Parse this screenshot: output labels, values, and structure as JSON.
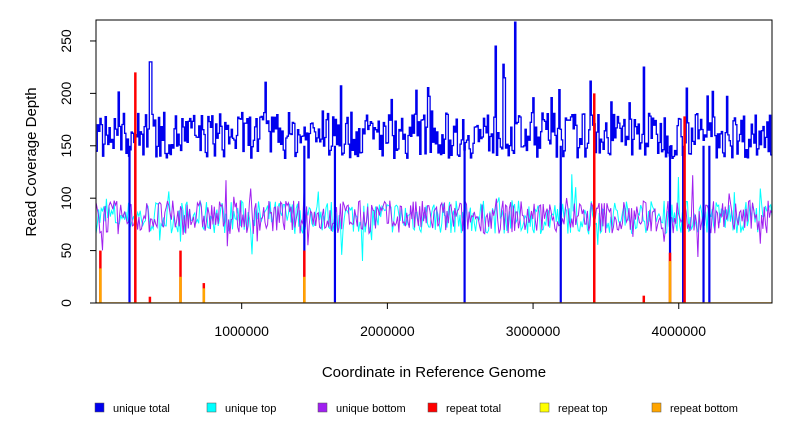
{
  "chart_data": {
    "type": "line",
    "title": "",
    "xlabel": "Coordinate in Reference Genome",
    "ylabel": "Read Coverage Depth",
    "xlim": [
      0,
      4640000
    ],
    "ylim": [
      0,
      270
    ],
    "x_ticks": [
      1000000,
      2000000,
      3000000,
      4000000
    ],
    "x_tick_labels": [
      "1000000",
      "2000000",
      "3000000",
      "4000000"
    ],
    "y_ticks": [
      0,
      50,
      100,
      150,
      200,
      250
    ],
    "y_tick_labels": [
      "0",
      "50",
      "100",
      "150",
      "200",
      "250"
    ],
    "grid": false,
    "legend_position": "bottom",
    "series": [
      {
        "name": "unique total",
        "color": "#0000ee",
        "baseline": 160,
        "noise": 22,
        "dips": [
          {
            "x": 230000,
            "y": 0
          },
          {
            "x": 270000,
            "y": 0
          },
          {
            "x": 1430000,
            "y": 0
          },
          {
            "x": 1640000,
            "y": 0
          },
          {
            "x": 2530000,
            "y": 0
          },
          {
            "x": 3190000,
            "y": 0
          },
          {
            "x": 3420000,
            "y": 0
          },
          {
            "x": 3940000,
            "y": 0
          },
          {
            "x": 4030000,
            "y": 0
          },
          {
            "x": 4170000,
            "y": 0
          },
          {
            "x": 4210000,
            "y": 0
          }
        ],
        "peaks": [
          {
            "x": 370000,
            "y": 230
          },
          {
            "x": 2740000,
            "y": 245
          },
          {
            "x": 2870000,
            "y": 268
          },
          {
            "x": 3760000,
            "y": 225
          },
          {
            "x": 4050000,
            "y": 205
          }
        ]
      },
      {
        "name": "unique top",
        "color": "#00ffff",
        "baseline": 82,
        "noise": 16
      },
      {
        "name": "unique bottom",
        "color": "#a020f0",
        "baseline": 82,
        "noise": 16
      },
      {
        "name": "repeat total",
        "color": "#ff0000",
        "baseline": 0,
        "spikes": [
          {
            "x": 30000,
            "y": 50
          },
          {
            "x": 270000,
            "y": 220
          },
          {
            "x": 370000,
            "y": 6
          },
          {
            "x": 580000,
            "y": 50
          },
          {
            "x": 740000,
            "y": 19
          },
          {
            "x": 1430000,
            "y": 50
          },
          {
            "x": 3420000,
            "y": 200
          },
          {
            "x": 3760000,
            "y": 7
          },
          {
            "x": 3940000,
            "y": 48
          },
          {
            "x": 4040000,
            "y": 178
          }
        ]
      },
      {
        "name": "repeat top",
        "color": "#ffff00",
        "baseline": 0
      },
      {
        "name": "repeat bottom",
        "color": "#ffa500",
        "baseline": 0,
        "spikes": [
          {
            "x": 30000,
            "y": 33
          },
          {
            "x": 580000,
            "y": 25
          },
          {
            "x": 740000,
            "y": 14
          },
          {
            "x": 1430000,
            "y": 25
          },
          {
            "x": 3940000,
            "y": 40
          }
        ]
      }
    ]
  }
}
